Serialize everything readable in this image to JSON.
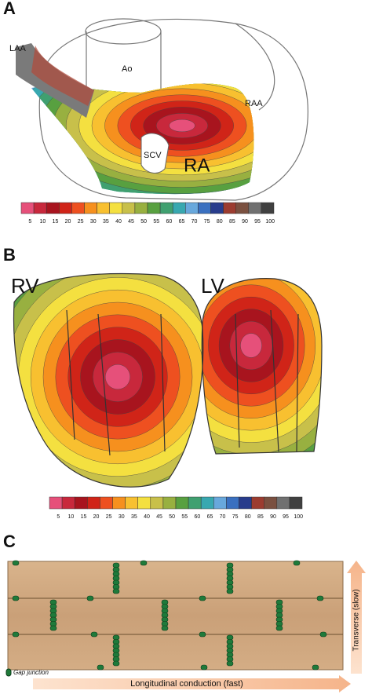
{
  "panels": [
    {
      "label": "A",
      "annotations": [
        "LAA",
        "Ao",
        "RAA",
        "SCV",
        "RA"
      ],
      "scale": [
        5,
        10,
        15,
        20,
        25,
        30,
        35,
        40,
        45,
        50,
        55,
        60,
        65,
        70,
        75,
        80,
        85,
        90,
        95,
        100
      ]
    },
    {
      "label": "B",
      "annotations": [
        "RV",
        "LV"
      ],
      "scale": [
        5,
        10,
        15,
        20,
        25,
        30,
        35,
        40,
        45,
        50,
        55,
        60,
        65,
        70,
        75,
        80,
        85,
        90,
        95,
        100
      ]
    },
    {
      "label": "C",
      "legend": "Gap junction",
      "x_axis": "Longitudinal conduction (fast)",
      "y_axis": "Transverse (slow)"
    }
  ]
}
